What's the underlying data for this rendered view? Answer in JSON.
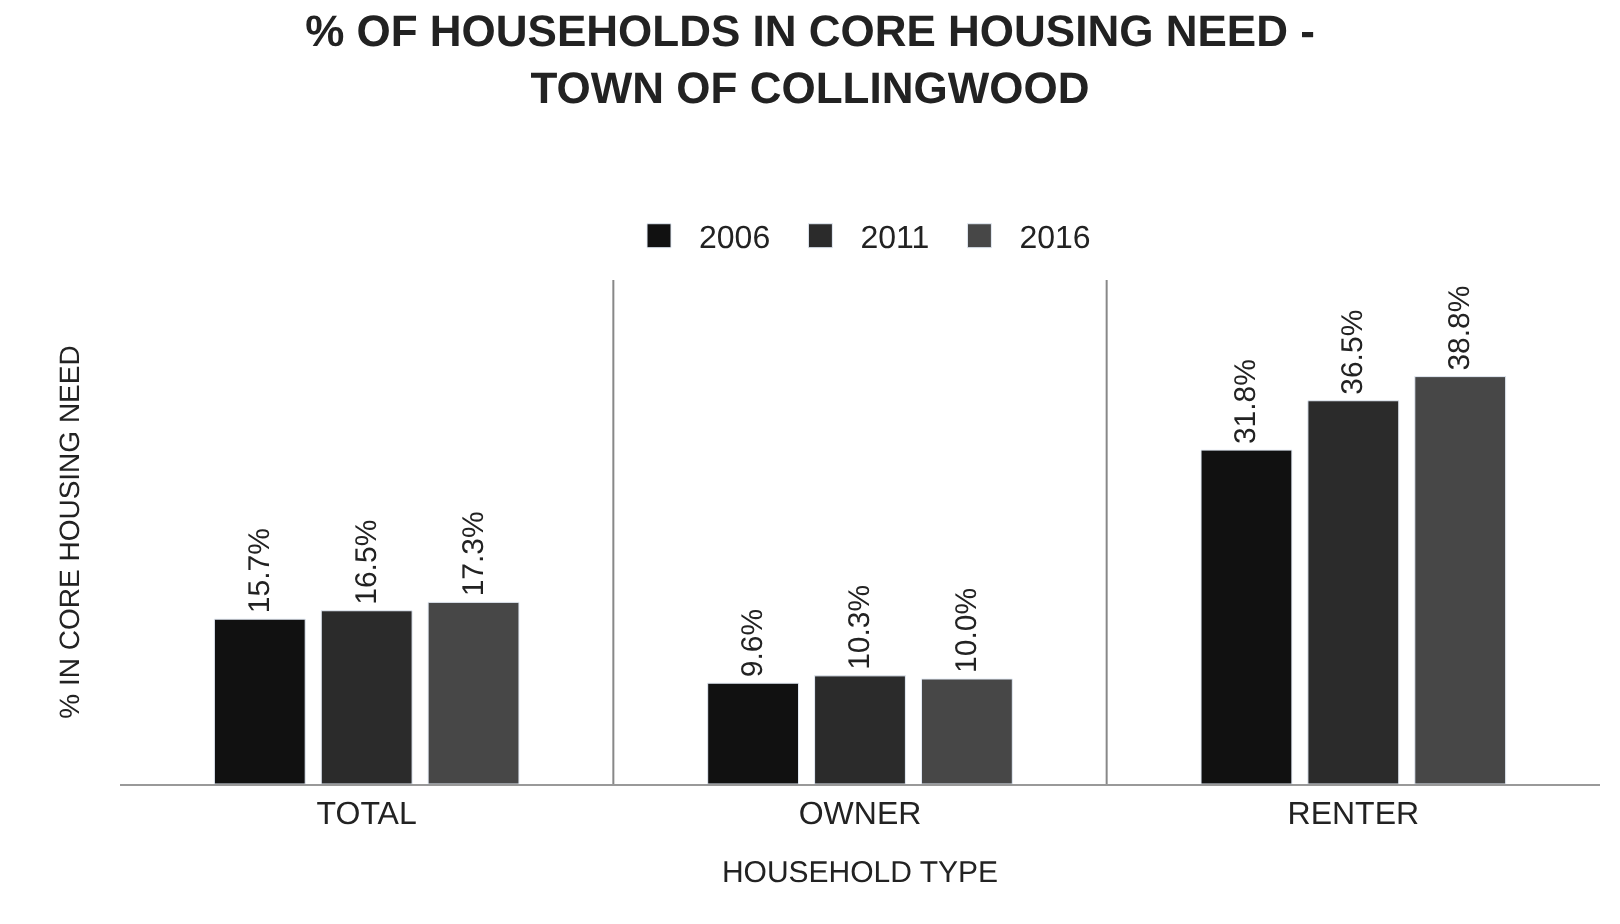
{
  "chart_data": {
    "type": "bar",
    "title": "% OF HOUSEHOLDS IN CORE HOUSING NEED -\nTOWN OF COLLINGWOOD",
    "xlabel": "HOUSEHOLD TYPE",
    "ylabel": "% IN CORE HOUSING NEED",
    "categories": [
      "TOTAL",
      "OWNER",
      "RENTER"
    ],
    "series": [
      {
        "name": "2006",
        "color": "#111111",
        "values": [
          15.7,
          9.6,
          31.8
        ],
        "value_labels": [
          "15.7%",
          "9.6%",
          "31.8%"
        ]
      },
      {
        "name": "2011",
        "color": "#2b2b2b",
        "values": [
          16.5,
          10.3,
          36.5
        ],
        "value_labels": [
          "16.5%",
          "10.3%",
          "36.5%"
        ]
      },
      {
        "name": "2016",
        "color": "#474747",
        "values": [
          17.3,
          10.0,
          38.8
        ],
        "value_labels": [
          "17.3%",
          "10.0%",
          "38.8%"
        ]
      }
    ],
    "ylim": [
      0,
      48
    ],
    "legend": "top",
    "tick_labels": "x"
  }
}
